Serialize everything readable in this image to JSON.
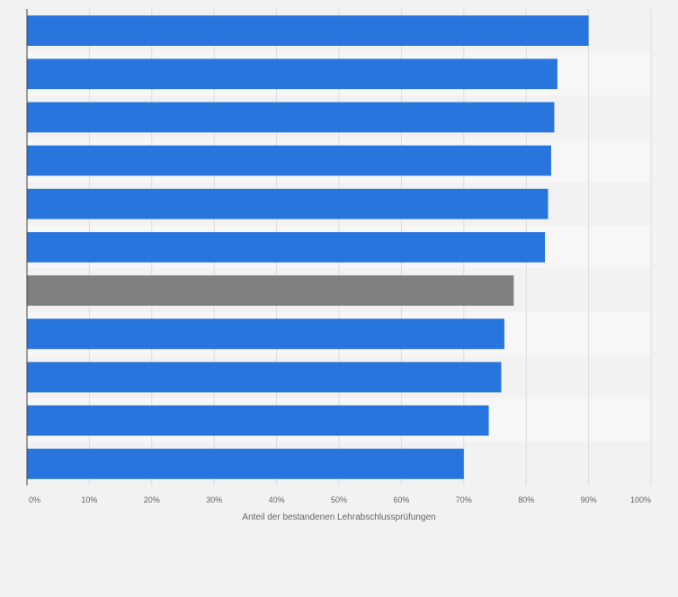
{
  "chart_data": {
    "type": "bar",
    "orientation": "horizontal",
    "categories": [
      "",
      "",
      "",
      "",
      "",
      "",
      "",
      "",
      "",
      "",
      ""
    ],
    "values": [
      90,
      85,
      84.5,
      84,
      83.5,
      83,
      78,
      76.5,
      76,
      74,
      70
    ],
    "highlight_index": 6,
    "xlabel": "Anteil der bestandenen Lehrabschlussprüfungen",
    "ylabel": "",
    "xlim": [
      0,
      100
    ],
    "x_ticks": [
      "0%",
      "10%",
      "20%",
      "30%",
      "40%",
      "50%",
      "60%",
      "70%",
      "80%",
      "90%",
      "100%"
    ],
    "grid": true,
    "colors": {
      "bar": "#2876dd",
      "highlight": "#808080",
      "band_light": "#f7f7f7",
      "band_dark": "#f2f2f2",
      "grid": "#dddddd",
      "axis": "#444444",
      "tick_text": "#666666"
    }
  }
}
